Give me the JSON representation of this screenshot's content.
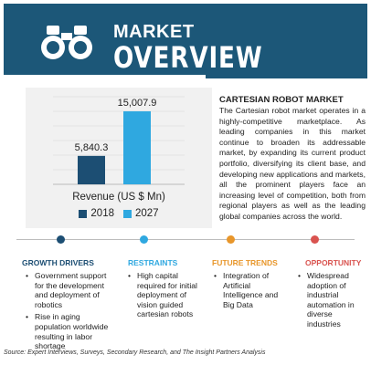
{
  "header": {
    "title_line1": "MARKET",
    "title_line2": "OVERVIEW",
    "icon": "binoculars-icon",
    "color": "#1c5778"
  },
  "chart_data": {
    "type": "bar",
    "categories": [
      "2018",
      "2027"
    ],
    "values": [
      5840.3,
      15007.9
    ],
    "value_labels": [
      "5,840.3",
      "15,007.9"
    ],
    "xlabel": "Revenue (US $ Mn)",
    "ylim": [
      0,
      18000
    ],
    "colors": [
      "#1c4e73",
      "#2fa8e0"
    ],
    "grid": true,
    "legend": "bottom"
  },
  "market": {
    "title": "CARTESIAN ROBOT MARKET",
    "description": "The Cartesian robot market operates in a highly-competitive marketplace. As leading companies in this market continue to broaden its addressable market, by expanding its current product portfolio, diversifying its client base, and developing new applications and markets, all the prominent players face an increasing level of competition, both from regional players as well as the leading global companies across the world."
  },
  "sections": [
    {
      "title": "GROWTH DRIVERS",
      "color": "#1c4e73",
      "items": [
        "Government support for the development and deployment of robotics",
        "Rise in aging population worldwide resulting in labor shortage"
      ]
    },
    {
      "title": "RESTRAINTS",
      "color": "#2fa8e0",
      "items": [
        "High capital required for initial deployment of vision guided cartesian robots"
      ]
    },
    {
      "title": "FUTURE TRENDS",
      "color": "#e8962a",
      "items": [
        "Integration of Artificial Intelligence and Big Data"
      ]
    },
    {
      "title": "OPPORTUNITY",
      "color": "#d9534f",
      "items": [
        "Widespread adoption of industrial automation in diverse industries"
      ]
    }
  ],
  "source": "Source: Expert Interviews, Surveys, Secondary Research, and The Insight Partners Analysis"
}
